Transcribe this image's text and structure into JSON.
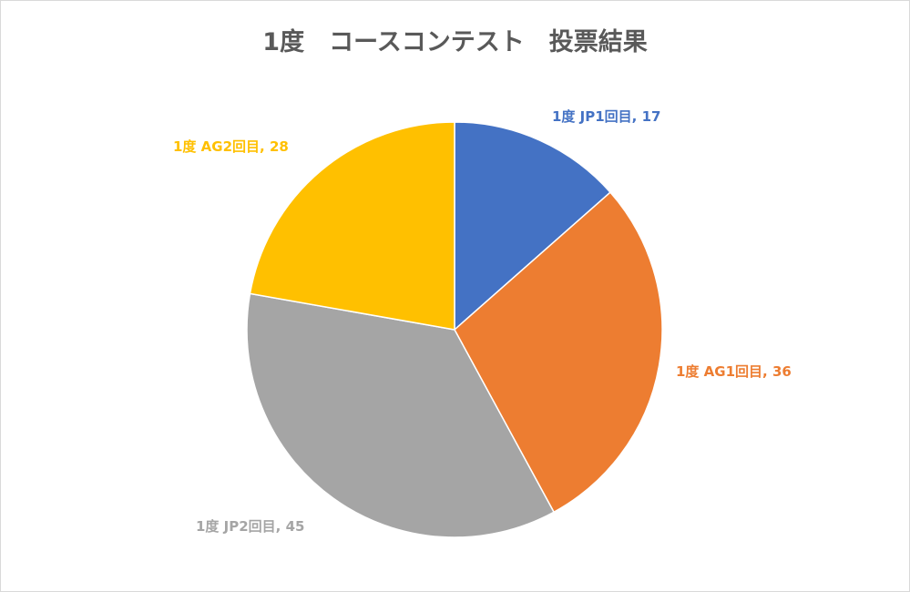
{
  "chart_data": {
    "type": "pie",
    "title": "1度　コースコンテスト　投票結果",
    "slices": [
      {
        "label": "1度 JP1回目",
        "value": 17,
        "color": "#4472C4",
        "data_label": "1度 JP1回目, 17"
      },
      {
        "label": "1度 AG1回目",
        "value": 36,
        "color": "#ED7D31",
        "data_label": "1度 AG1回目, 36"
      },
      {
        "label": "1度 JP2回目",
        "value": 45,
        "color": "#A5A5A5",
        "data_label": "1度 JP2回目, 45"
      },
      {
        "label": "1度 AG2回目",
        "value": 28,
        "color": "#FFC000",
        "data_label": "1度 AG2回目, 28"
      }
    ],
    "start_angle_deg": 0,
    "direction": "clockwise",
    "legend": "none"
  }
}
